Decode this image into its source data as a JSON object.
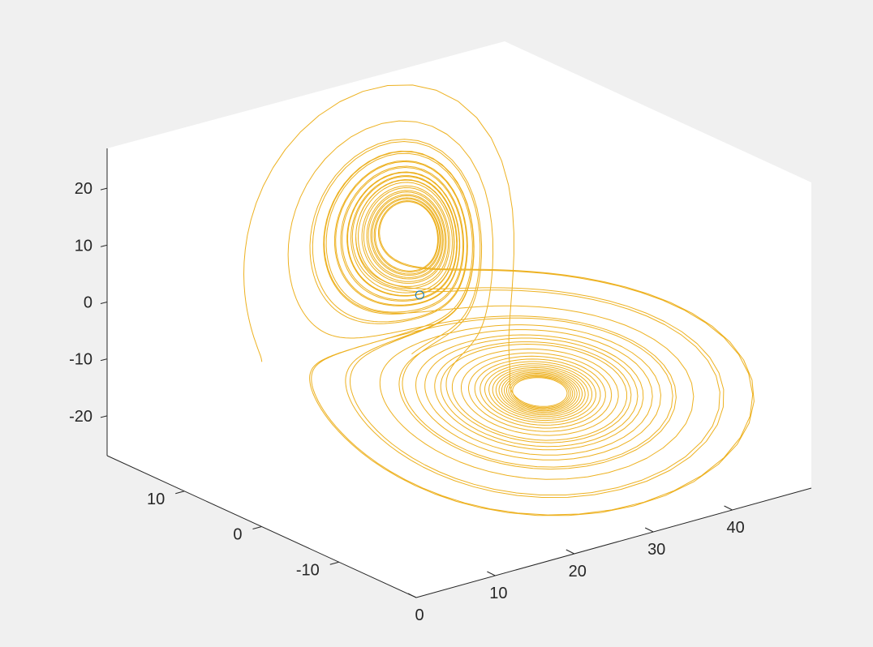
{
  "chart_data": {
    "type": "line",
    "projection": "3d",
    "grid": false,
    "box": false,
    "title": "",
    "xlabel": "",
    "ylabel": "",
    "zlabel": "",
    "xlim": [
      0,
      50
    ],
    "ylim": [
      -20,
      20
    ],
    "zlim": [
      -27,
      27
    ],
    "xticks": [
      {
        "value": 0,
        "label": "0"
      },
      {
        "value": 10,
        "label": "10"
      },
      {
        "value": 20,
        "label": "20"
      },
      {
        "value": 30,
        "label": "30"
      },
      {
        "value": 40,
        "label": "40"
      }
    ],
    "yticks": [
      {
        "value": -10,
        "label": "-10"
      },
      {
        "value": 0,
        "label": "0"
      },
      {
        "value": 10,
        "label": "10"
      }
    ],
    "zticks": [
      {
        "value": -20,
        "label": "-20"
      },
      {
        "value": -10,
        "label": "-10"
      },
      {
        "value": 0,
        "label": "0"
      },
      {
        "value": 10,
        "label": "10"
      },
      {
        "value": 20,
        "label": "20"
      }
    ],
    "series": [
      {
        "type": "lorenz-trajectory",
        "color": "#EDB120",
        "sigma": 10,
        "rho": 28,
        "beta": 2.6667,
        "initial": [
          1,
          1,
          1
        ],
        "t_end": 40
      }
    ],
    "marker": {
      "type": "circle",
      "color": "#0072BD",
      "point": [
        20,
        0,
        6
      ]
    }
  }
}
